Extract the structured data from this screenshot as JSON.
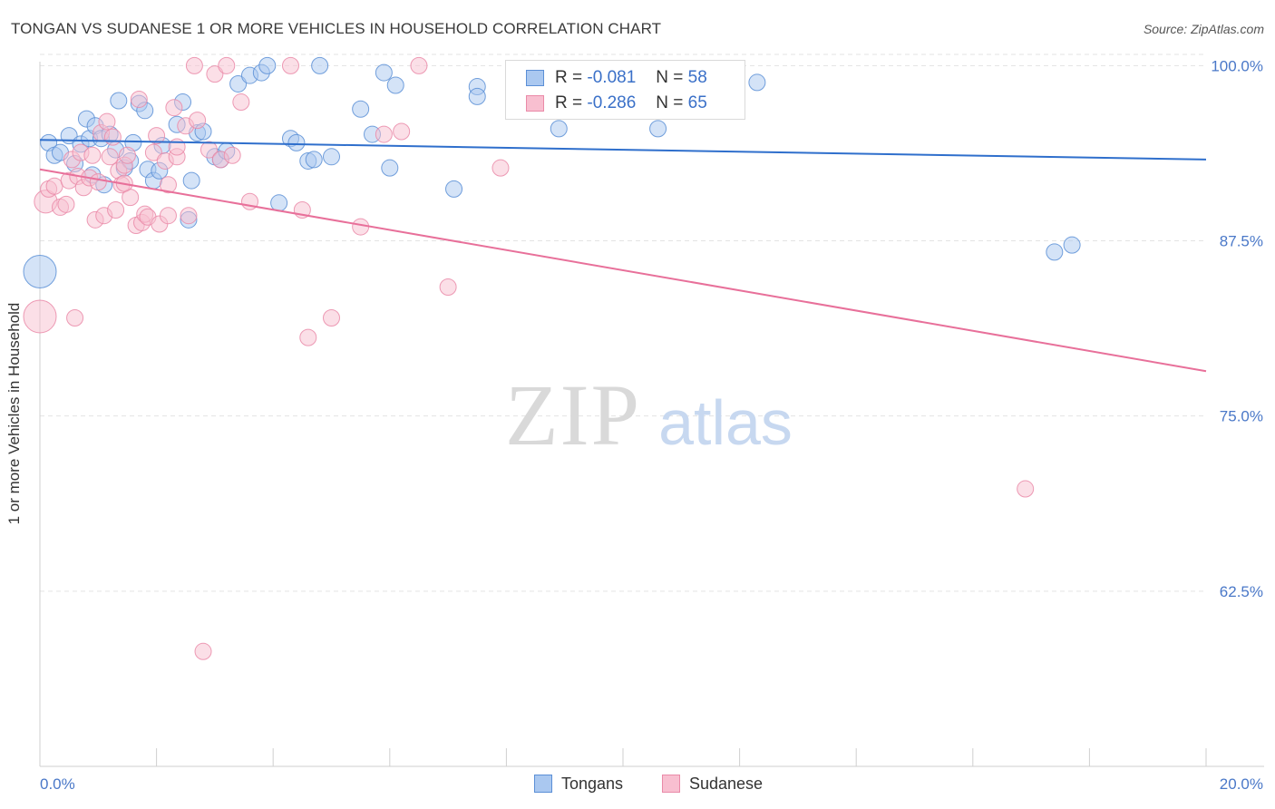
{
  "title": "TONGAN VS SUDANESE 1 OR MORE VEHICLES IN HOUSEHOLD CORRELATION CHART",
  "source": "Source: ZipAtlas.com",
  "watermark": {
    "zip": "ZIP",
    "atlas": "atlas"
  },
  "legend_top": [
    {
      "r_label": "R =",
      "r_value": "-0.081",
      "n_label": "N =",
      "n_value": "58"
    },
    {
      "r_label": "R =",
      "r_value": "-0.286",
      "n_label": "N =",
      "n_value": "65"
    }
  ],
  "legend_bottom": [
    "Tongans",
    "Sudanese"
  ],
  "colors": {
    "tongans_fill": "#aac8f0",
    "tongans_stroke": "#5b8fd6",
    "tongans_line": "#2f6fcc",
    "sudanese_fill": "#f8bfd0",
    "sudanese_stroke": "#ea8aa8",
    "sudanese_line": "#e8709a",
    "tick_text": "#4a78c8"
  },
  "chart_data": {
    "type": "scatter",
    "title": "TONGAN VS SUDANESE 1 OR MORE VEHICLES IN HOUSEHOLD CORRELATION CHART",
    "xlabel": "",
    "ylabel": "1 or more Vehicles in Household",
    "xlim": [
      0,
      20
    ],
    "ylim": [
      50,
      100.8
    ],
    "x_tick_labels": [
      "0.0%",
      "20.0%"
    ],
    "y_ticks": [
      62.5,
      75.0,
      87.5,
      100.0
    ],
    "y_tick_labels": [
      "62.5%",
      "75.0%",
      "87.5%",
      "100.0%"
    ],
    "grid": true,
    "legend_position": "top-center",
    "series": [
      {
        "name": "Tongans",
        "r": -0.081,
        "n": 58,
        "trend": {
          "x": [
            0,
            20
          ],
          "y": [
            94.7,
            93.3
          ]
        },
        "points": [
          [
            0.15,
            94.5,
            10
          ],
          [
            0.25,
            93.6,
            10
          ],
          [
            0.35,
            93.8,
            10
          ],
          [
            0.5,
            95.0,
            10
          ],
          [
            0.6,
            93.0,
            10
          ],
          [
            0.7,
            94.4,
            10
          ],
          [
            0.8,
            96.2,
            10
          ],
          [
            0.85,
            94.8,
            10
          ],
          [
            0.9,
            92.2,
            10
          ],
          [
            0.95,
            95.7,
            10
          ],
          [
            1.05,
            94.8,
            10
          ],
          [
            1.1,
            91.5,
            10
          ],
          [
            1.2,
            95.1,
            10
          ],
          [
            1.3,
            94.0,
            10
          ],
          [
            1.35,
            97.5,
            10
          ],
          [
            1.45,
            92.7,
            10
          ],
          [
            1.55,
            93.2,
            10
          ],
          [
            1.6,
            94.5,
            10
          ],
          [
            1.7,
            97.3,
            10
          ],
          [
            1.8,
            96.8,
            10
          ],
          [
            1.85,
            92.6,
            10
          ],
          [
            1.95,
            91.8,
            10
          ],
          [
            2.05,
            92.5,
            10
          ],
          [
            2.1,
            94.3,
            10
          ],
          [
            2.35,
            95.8,
            10
          ],
          [
            2.45,
            97.4,
            10
          ],
          [
            2.55,
            89.0,
            10
          ],
          [
            2.6,
            91.8,
            10
          ],
          [
            2.7,
            95.2,
            10
          ],
          [
            2.8,
            95.3,
            10
          ],
          [
            3.0,
            93.5,
            10
          ],
          [
            3.1,
            93.3,
            10
          ],
          [
            3.2,
            93.9,
            10
          ],
          [
            3.4,
            98.7,
            10
          ],
          [
            3.6,
            99.3,
            10
          ],
          [
            3.8,
            99.5,
            10
          ],
          [
            3.9,
            100.0,
            10
          ],
          [
            4.1,
            90.2,
            10
          ],
          [
            4.3,
            94.8,
            10
          ],
          [
            4.4,
            94.5,
            10
          ],
          [
            4.6,
            93.2,
            10
          ],
          [
            4.7,
            93.3,
            10
          ],
          [
            4.8,
            100.0,
            10
          ],
          [
            5.0,
            93.5,
            10
          ],
          [
            5.5,
            96.9,
            10
          ],
          [
            5.7,
            95.1,
            10
          ],
          [
            5.9,
            99.5,
            10
          ],
          [
            6.0,
            92.7,
            10
          ],
          [
            6.1,
            98.6,
            10
          ],
          [
            7.1,
            91.2,
            10
          ],
          [
            7.5,
            98.5,
            10
          ],
          [
            7.5,
            97.8,
            10
          ],
          [
            8.9,
            95.5,
            10
          ],
          [
            10.6,
            95.5,
            10
          ],
          [
            12.3,
            98.8,
            10
          ],
          [
            17.4,
            86.7,
            10
          ],
          [
            17.7,
            87.2,
            10
          ],
          [
            0.0,
            85.3,
            20
          ]
        ]
      },
      {
        "name": "Sudanese",
        "r": -0.286,
        "n": 65,
        "trend": {
          "x": [
            0,
            20
          ],
          "y": [
            92.6,
            78.2
          ]
        },
        "points": [
          [
            0.1,
            90.3,
            14
          ],
          [
            0.15,
            91.2,
            10
          ],
          [
            0.25,
            91.4,
            10
          ],
          [
            0.35,
            89.9,
            10
          ],
          [
            0.45,
            90.1,
            10
          ],
          [
            0.5,
            91.8,
            10
          ],
          [
            0.55,
            93.3,
            10
          ],
          [
            0.65,
            92.1,
            10
          ],
          [
            0.7,
            93.8,
            10
          ],
          [
            0.75,
            91.3,
            10
          ],
          [
            0.85,
            92.0,
            10
          ],
          [
            0.9,
            93.6,
            10
          ],
          [
            0.95,
            89.0,
            10
          ],
          [
            1.0,
            91.7,
            10
          ],
          [
            1.05,
            95.2,
            10
          ],
          [
            1.1,
            89.3,
            10
          ],
          [
            1.15,
            96.0,
            10
          ],
          [
            1.2,
            93.5,
            10
          ],
          [
            1.25,
            94.9,
            10
          ],
          [
            1.3,
            89.7,
            10
          ],
          [
            1.35,
            92.5,
            10
          ],
          [
            1.4,
            91.5,
            10
          ],
          [
            1.45,
            92.9,
            10
          ],
          [
            1.5,
            93.6,
            10
          ],
          [
            1.55,
            90.6,
            10
          ],
          [
            1.65,
            88.6,
            10
          ],
          [
            1.7,
            97.6,
            10
          ],
          [
            1.75,
            88.8,
            10
          ],
          [
            1.8,
            89.4,
            10
          ],
          [
            1.85,
            89.2,
            10
          ],
          [
            1.95,
            93.8,
            10
          ],
          [
            2.0,
            95.0,
            10
          ],
          [
            2.05,
            88.7,
            10
          ],
          [
            2.15,
            93.2,
            10
          ],
          [
            2.2,
            91.5,
            10
          ],
          [
            2.3,
            97.0,
            10
          ],
          [
            2.35,
            93.5,
            10
          ],
          [
            2.5,
            95.7,
            10
          ],
          [
            2.55,
            89.3,
            10
          ],
          [
            2.65,
            100.0,
            10
          ],
          [
            2.7,
            96.1,
            10
          ],
          [
            2.8,
            58.2,
            10
          ],
          [
            2.9,
            94.0,
            10
          ],
          [
            3.0,
            99.4,
            10
          ],
          [
            3.1,
            93.3,
            10
          ],
          [
            3.2,
            100.0,
            10
          ],
          [
            3.3,
            93.6,
            10
          ],
          [
            3.45,
            97.4,
            10
          ],
          [
            3.6,
            90.3,
            10
          ],
          [
            4.3,
            100.0,
            10
          ],
          [
            4.5,
            89.7,
            10
          ],
          [
            4.6,
            80.6,
            10
          ],
          [
            5.0,
            82.0,
            10
          ],
          [
            5.5,
            88.5,
            10
          ],
          [
            5.9,
            95.1,
            10
          ],
          [
            6.2,
            95.3,
            10
          ],
          [
            6.5,
            100.0,
            10
          ],
          [
            7.0,
            84.2,
            10
          ],
          [
            7.9,
            92.7,
            10
          ],
          [
            16.9,
            69.8,
            10
          ],
          [
            0.6,
            82.0,
            10
          ],
          [
            1.45,
            91.6,
            10
          ],
          [
            2.2,
            89.3,
            10
          ],
          [
            0.0,
            82.1,
            20
          ],
          [
            2.35,
            94.2,
            10
          ]
        ]
      }
    ]
  }
}
